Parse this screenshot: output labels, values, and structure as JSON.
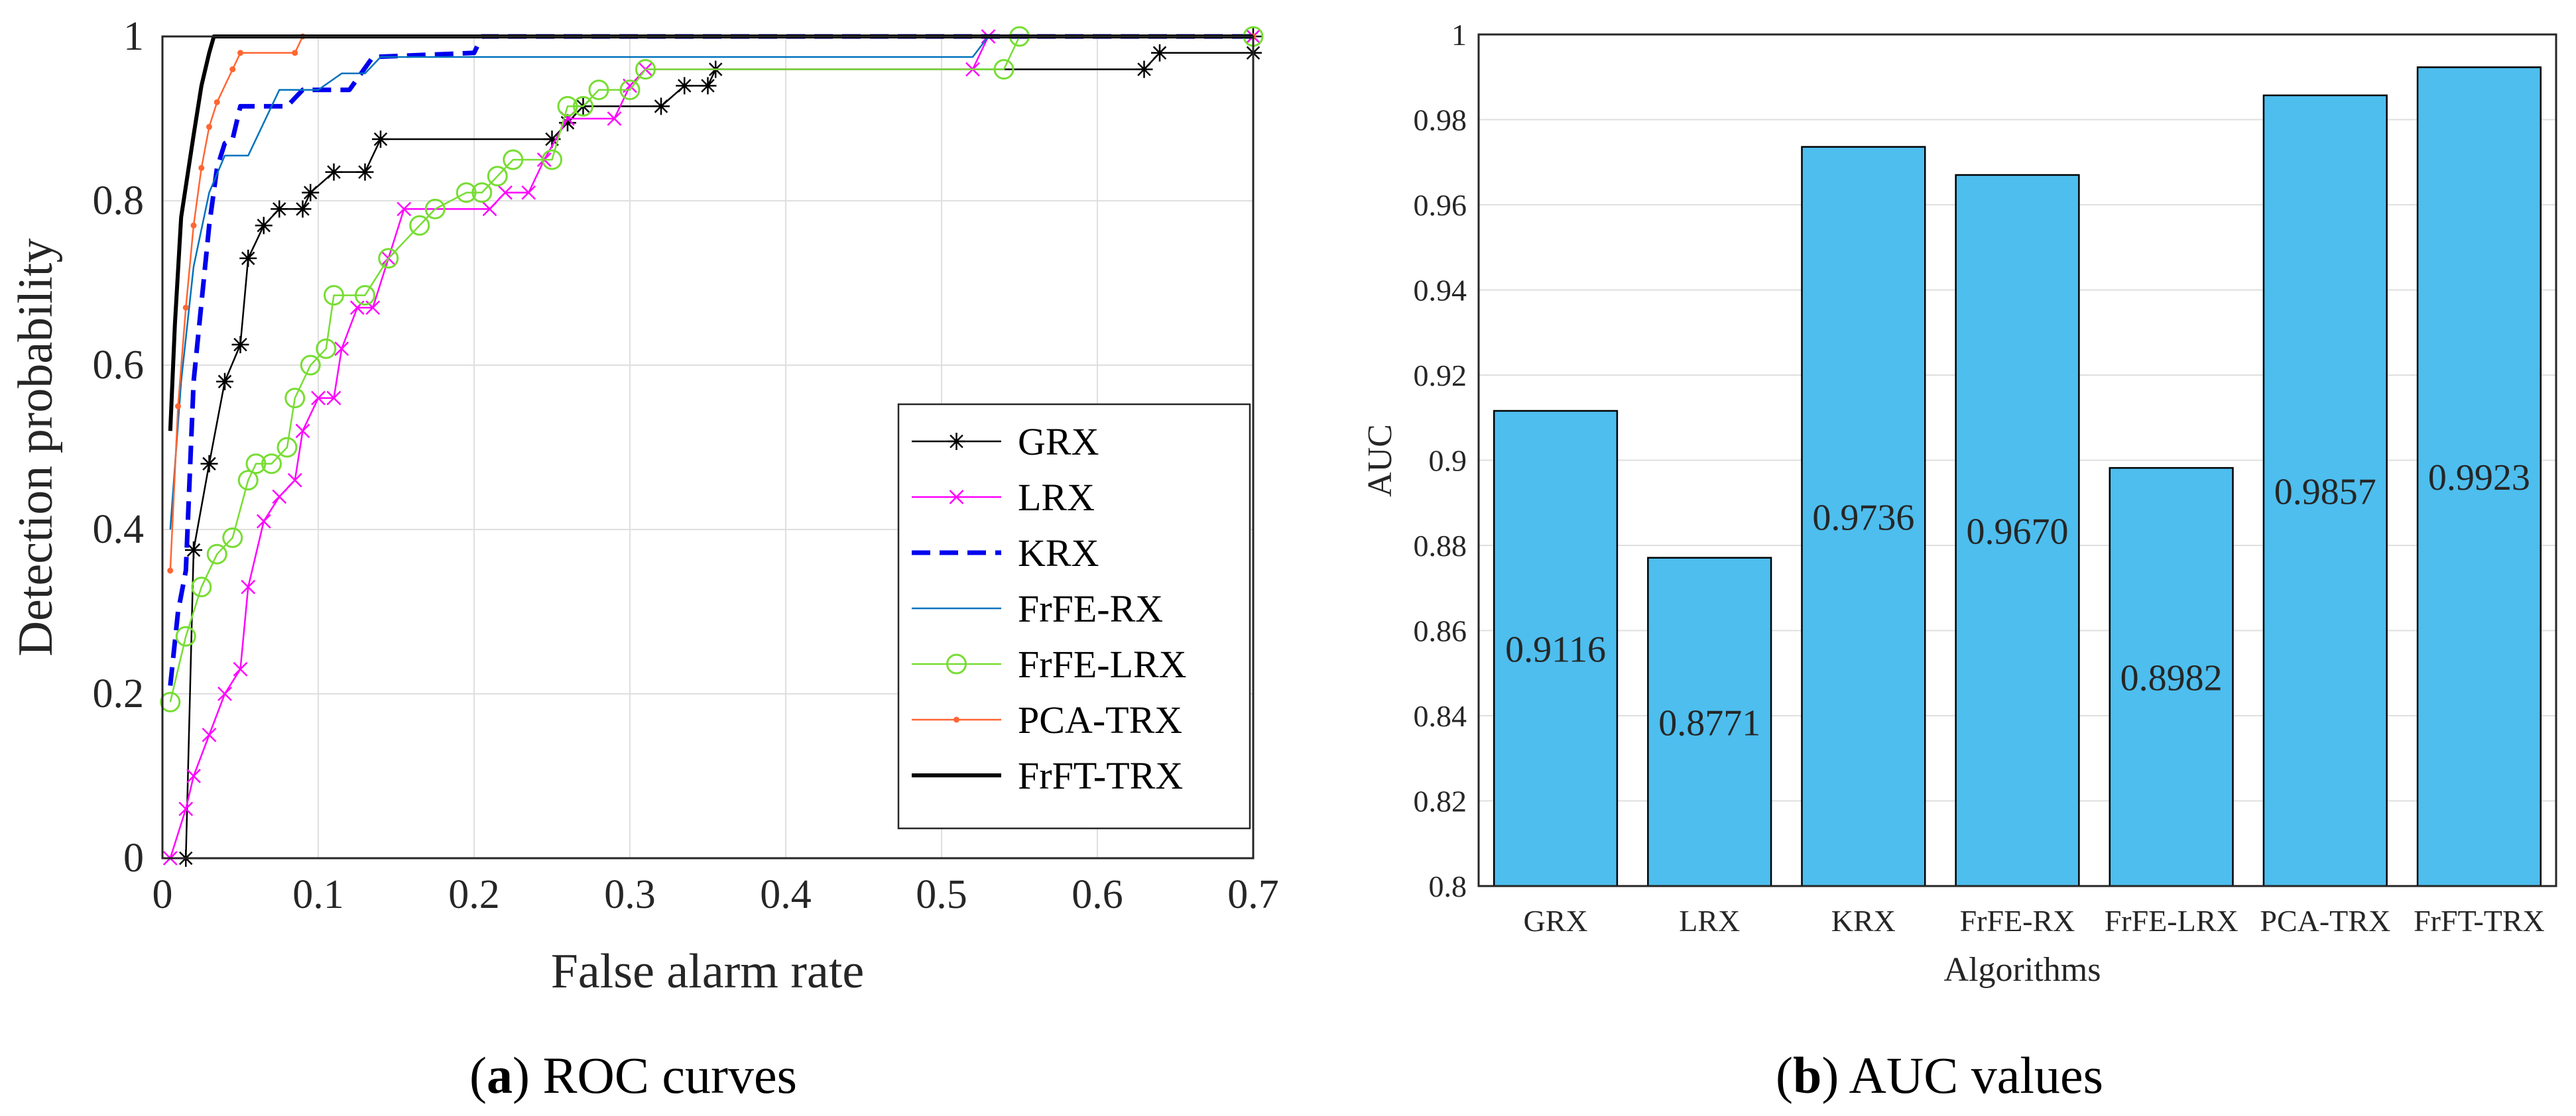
{
  "chart_data": [
    {
      "type": "line",
      "caption": {
        "letter": "a",
        "text": "ROC curves"
      },
      "xlabel": "False alarm rate",
      "ylabel": "Detection probability",
      "xlim": [
        0,
        0.7
      ],
      "ylim": [
        0,
        1
      ],
      "xticks": [
        "0",
        "0.1",
        "0.2",
        "0.3",
        "0.4",
        "0.5",
        "0.6",
        "0.7"
      ],
      "yticks": [
        "0",
        "0.2",
        "0.4",
        "0.6",
        "0.8",
        "1"
      ],
      "grid": true,
      "legend_position": "bottom-right",
      "series": [
        {
          "name": "GRX",
          "color": "#000000",
          "marker": "star",
          "points": [
            [
              0.015,
              0
            ],
            [
              0.02,
              0.375
            ],
            [
              0.03,
              0.48
            ],
            [
              0.04,
              0.58
            ],
            [
              0.05,
              0.625
            ],
            [
              0.055,
              0.73
            ],
            [
              0.065,
              0.77
            ],
            [
              0.075,
              0.79
            ],
            [
              0.09,
              0.79
            ],
            [
              0.095,
              0.81
            ],
            [
              0.11,
              0.835
            ],
            [
              0.13,
              0.835
            ],
            [
              0.14,
              0.875
            ],
            [
              0.25,
              0.875
            ],
            [
              0.26,
              0.895
            ],
            [
              0.27,
              0.915
            ],
            [
              0.32,
              0.915
            ],
            [
              0.335,
              0.94
            ],
            [
              0.35,
              0.94
            ],
            [
              0.355,
              0.96
            ],
            [
              0.63,
              0.96
            ],
            [
              0.64,
              0.98
            ],
            [
              0.7,
              0.98
            ],
            [
              0.7,
              1
            ]
          ]
        },
        {
          "name": "LRX",
          "color": "#ff00ff",
          "marker": "x",
          "points": [
            [
              0.005,
              0
            ],
            [
              0.015,
              0.06
            ],
            [
              0.02,
              0.1
            ],
            [
              0.03,
              0.15
            ],
            [
              0.04,
              0.2
            ],
            [
              0.05,
              0.23
            ],
            [
              0.055,
              0.33
            ],
            [
              0.065,
              0.41
            ],
            [
              0.075,
              0.44
            ],
            [
              0.085,
              0.46
            ],
            [
              0.09,
              0.52
            ],
            [
              0.1,
              0.56
            ],
            [
              0.11,
              0.56
            ],
            [
              0.115,
              0.62
            ],
            [
              0.125,
              0.67
            ],
            [
              0.135,
              0.67
            ],
            [
              0.145,
              0.73
            ],
            [
              0.155,
              0.79
            ],
            [
              0.21,
              0.79
            ],
            [
              0.22,
              0.81
            ],
            [
              0.235,
              0.81
            ],
            [
              0.245,
              0.85
            ],
            [
              0.26,
              0.9
            ],
            [
              0.29,
              0.9
            ],
            [
              0.3,
              0.94
            ],
            [
              0.31,
              0.96
            ],
            [
              0.52,
              0.96
            ],
            [
              0.53,
              1
            ],
            [
              0.7,
              1
            ]
          ]
        },
        {
          "name": "KRX",
          "color": "#0000ee",
          "style": "dashed",
          "points": [
            [
              0.005,
              0.21
            ],
            [
              0.01,
              0.3
            ],
            [
              0.015,
              0.35
            ],
            [
              0.02,
              0.58
            ],
            [
              0.03,
              0.77
            ],
            [
              0.035,
              0.84
            ],
            [
              0.04,
              0.87
            ],
            [
              0.045,
              0.875
            ],
            [
              0.05,
              0.915
            ],
            [
              0.08,
              0.915
            ],
            [
              0.09,
              0.935
            ],
            [
              0.12,
              0.935
            ],
            [
              0.135,
              0.975
            ],
            [
              0.2,
              0.98
            ],
            [
              0.205,
              1
            ],
            [
              0.7,
              1
            ]
          ]
        },
        {
          "name": "FrFE-RX",
          "color": "#0072bd",
          "points": [
            [
              0.005,
              0.4
            ],
            [
              0.012,
              0.58
            ],
            [
              0.02,
              0.72
            ],
            [
              0.03,
              0.81
            ],
            [
              0.04,
              0.855
            ],
            [
              0.055,
              0.855
            ],
            [
              0.075,
              0.935
            ],
            [
              0.1,
              0.935
            ],
            [
              0.115,
              0.955
            ],
            [
              0.13,
              0.955
            ],
            [
              0.14,
              0.975
            ],
            [
              0.52,
              0.975
            ],
            [
              0.53,
              1
            ],
            [
              0.7,
              1
            ]
          ]
        },
        {
          "name": "FrFE-LRX",
          "color": "#77dd33",
          "marker": "circle",
          "points": [
            [
              0.005,
              0.19
            ],
            [
              0.015,
              0.27
            ],
            [
              0.025,
              0.33
            ],
            [
              0.035,
              0.37
            ],
            [
              0.045,
              0.39
            ],
            [
              0.055,
              0.46
            ],
            [
              0.06,
              0.48
            ],
            [
              0.07,
              0.48
            ],
            [
              0.08,
              0.5
            ],
            [
              0.085,
              0.56
            ],
            [
              0.095,
              0.6
            ],
            [
              0.105,
              0.62
            ],
            [
              0.11,
              0.685
            ],
            [
              0.13,
              0.685
            ],
            [
              0.145,
              0.73
            ],
            [
              0.165,
              0.77
            ],
            [
              0.175,
              0.79
            ],
            [
              0.195,
              0.81
            ],
            [
              0.205,
              0.81
            ],
            [
              0.215,
              0.83
            ],
            [
              0.225,
              0.85
            ],
            [
              0.25,
              0.85
            ],
            [
              0.26,
              0.915
            ],
            [
              0.27,
              0.915
            ],
            [
              0.28,
              0.935
            ],
            [
              0.3,
              0.935
            ],
            [
              0.31,
              0.96
            ],
            [
              0.54,
              0.96
            ],
            [
              0.55,
              1
            ],
            [
              0.7,
              1
            ]
          ]
        },
        {
          "name": "PCA-TRX",
          "color": "#ff6633",
          "marker": "dot",
          "points": [
            [
              0.005,
              0.35
            ],
            [
              0.01,
              0.55
            ],
            [
              0.015,
              0.67
            ],
            [
              0.02,
              0.77
            ],
            [
              0.025,
              0.84
            ],
            [
              0.03,
              0.89
            ],
            [
              0.035,
              0.92
            ],
            [
              0.045,
              0.96
            ],
            [
              0.05,
              0.98
            ],
            [
              0.085,
              0.98
            ],
            [
              0.09,
              1
            ],
            [
              0.7,
              1
            ]
          ]
        },
        {
          "name": "FrFT-TRX",
          "color": "#000000",
          "width": 6,
          "points": [
            [
              0.005,
              0.52
            ],
            [
              0.008,
              0.65
            ],
            [
              0.012,
              0.78
            ],
            [
              0.02,
              0.88
            ],
            [
              0.025,
              0.94
            ],
            [
              0.03,
              0.98
            ],
            [
              0.033,
              1
            ],
            [
              0.7,
              1
            ]
          ]
        }
      ]
    },
    {
      "type": "bar",
      "caption": {
        "letter": "b",
        "text": "AUC values"
      },
      "xlabel": "Algorithms",
      "ylabel": "AUC",
      "ylim": [
        0.8,
        1
      ],
      "yticks": [
        "0.8",
        "0.82",
        "0.84",
        "0.86",
        "0.88",
        "0.9",
        "0.92",
        "0.94",
        "0.96",
        "0.98",
        "1"
      ],
      "bar_color": "#4dbeee",
      "categories": [
        "GRX",
        "LRX",
        "KRX",
        "FrFE-RX",
        "FrFE-LRX",
        "PCA-TRX",
        "FrFT-TRX"
      ],
      "values": [
        0.9116,
        0.8771,
        0.9736,
        0.967,
        0.8982,
        0.9857,
        0.9923
      ],
      "labels": [
        "0.9116",
        "0.8771",
        "0.9736",
        "0.9670",
        "0.8982",
        "0.9857",
        "0.9923"
      ]
    }
  ]
}
